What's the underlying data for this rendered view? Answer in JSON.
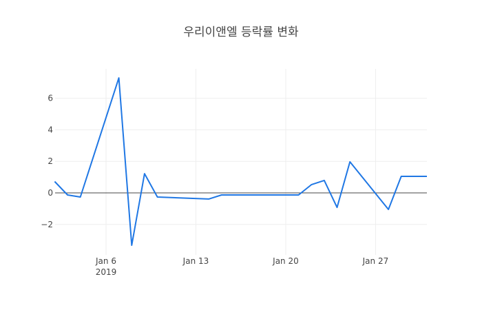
{
  "chart_data": {
    "type": "line",
    "title": "우리이앤엘 등락률 변화",
    "xlabel": "",
    "ylabel": "",
    "x_tick_labels": [
      "Jan 6",
      "Jan 13",
      "Jan 20",
      "Jan 27"
    ],
    "x_tick_sublabel": "2019",
    "y_ticks": [
      -2,
      0,
      2,
      4,
      6
    ],
    "y_tick_labels": [
      "−2",
      "0",
      "2",
      "4",
      "6"
    ],
    "ylim": [
      -3.9,
      7.9
    ],
    "grid": true,
    "legend": "none",
    "line_color": "#1f77e4",
    "x": [
      "2019-01-02",
      "2019-01-03",
      "2019-01-04",
      "2019-01-07",
      "2019-01-08",
      "2019-01-09",
      "2019-01-10",
      "2019-01-14",
      "2019-01-15",
      "2019-01-16",
      "2019-01-17",
      "2019-01-18",
      "2019-01-21",
      "2019-01-22",
      "2019-01-23",
      "2019-01-24",
      "2019-01-25",
      "2019-01-28",
      "2019-01-29",
      "2019-01-30",
      "2019-01-31"
    ],
    "series": [
      {
        "name": "등락률",
        "values": [
          0.72,
          -0.13,
          -0.26,
          7.29,
          -3.32,
          1.22,
          -0.26,
          -0.39,
          -0.13,
          -0.13,
          -0.13,
          -0.13,
          -0.13,
          0.52,
          0.79,
          -0.92,
          1.97,
          -1.05,
          1.05,
          1.05,
          1.05
        ]
      }
    ]
  }
}
